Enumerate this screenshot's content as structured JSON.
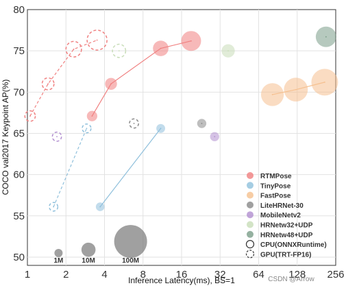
{
  "chart_data": {
    "type": "scatter",
    "xlabel": "Inference Latency(ms), BS=1",
    "ylabel": "COCO val2017 Keypoint AP(%)",
    "x_scale": "log2",
    "xlim": [
      1,
      256
    ],
    "ylim": [
      49,
      80
    ],
    "x_ticks": [
      1,
      2,
      4,
      8,
      16,
      32,
      64,
      128,
      256
    ],
    "x_tick_labels": [
      "1",
      "2",
      "4",
      "8",
      "16",
      "32",
      "64",
      "128",
      "256"
    ],
    "y_ticks": [
      50,
      55,
      60,
      65,
      70,
      75,
      80
    ],
    "y_tick_labels": [
      "50",
      "55",
      "60",
      "65",
      "70",
      "75",
      "80"
    ],
    "grid": true,
    "legend_position": "bottom-right",
    "legend": [
      {
        "label": "RTMPose",
        "marker": "dot",
        "color": "#f08080"
      },
      {
        "label": "TinyPose",
        "marker": "dot",
        "color": "#8fc0dc"
      },
      {
        "label": "FastPose",
        "marker": "dot",
        "color": "#f5c08f"
      },
      {
        "label": "LiteHRNet-30",
        "marker": "dot",
        "color": "#888888"
      },
      {
        "label": "MobileNetv2",
        "marker": "dot",
        "color": "#b28fd0"
      },
      {
        "label": "HRNetw32+UDP",
        "marker": "dot",
        "color": "#c8ddb8"
      },
      {
        "label": "HRNetw48+UDP",
        "marker": "dot",
        "color": "#7a9d88"
      },
      {
        "label": "CPU(ONNXRuntime)",
        "marker": "ring-solid",
        "color": "#333333"
      },
      {
        "label": "GPU(TRT-FP16)",
        "marker": "ring-dashed",
        "color": "#333333"
      }
    ],
    "series": [
      {
        "name": "RTMPose",
        "device": "CPU",
        "color": "#f08080",
        "connect": true,
        "points": [
          {
            "x": 3.2,
            "y": 67.1,
            "params_m": 3.3
          },
          {
            "x": 4.5,
            "y": 71.0,
            "params_m": 5.5
          },
          {
            "x": 11.0,
            "y": 75.3,
            "params_m": 13.5
          },
          {
            "x": 19.0,
            "y": 76.2,
            "params_m": 27.7
          }
        ]
      },
      {
        "name": "RTMPose",
        "device": "GPU",
        "color": "#f08080",
        "connect": true,
        "points": [
          {
            "x": 1.05,
            "y": 67.1,
            "params_m": 3.3
          },
          {
            "x": 1.45,
            "y": 71.0,
            "params_m": 5.5
          },
          {
            "x": 2.3,
            "y": 75.2,
            "params_m": 13.5
          },
          {
            "x": 3.5,
            "y": 76.3,
            "params_m": 27.7
          }
        ]
      },
      {
        "name": "TinyPose",
        "device": "CPU",
        "color": "#8fc0dc",
        "connect": true,
        "points": [
          {
            "x": 3.7,
            "y": 56.1,
            "params_m": 1.3
          },
          {
            "x": 11.0,
            "y": 65.6,
            "params_m": 1.5
          }
        ]
      },
      {
        "name": "TinyPose",
        "device": "GPU",
        "color": "#8fc0dc",
        "connect": true,
        "points": [
          {
            "x": 1.6,
            "y": 56.1,
            "params_m": 1.3
          },
          {
            "x": 2.9,
            "y": 65.6,
            "params_m": 1.5
          }
        ]
      },
      {
        "name": "FastPose",
        "device": "CPU",
        "color": "#f5c08f",
        "connect": true,
        "points": [
          {
            "x": 82.0,
            "y": 69.7,
            "params_m": 40
          },
          {
            "x": 125.0,
            "y": 70.3,
            "params_m": 45
          },
          {
            "x": 210.0,
            "y": 71.2,
            "params_m": 60
          }
        ]
      },
      {
        "name": "LiteHRNet-30",
        "device": "CPU",
        "color": "#888888",
        "connect": false,
        "points": [
          {
            "x": 23.0,
            "y": 66.2,
            "params_m": 1.8
          }
        ]
      },
      {
        "name": "LiteHRNet-30",
        "device": "GPU",
        "color": "#888888",
        "connect": false,
        "points": [
          {
            "x": 6.8,
            "y": 66.2,
            "params_m": 1.8
          }
        ]
      },
      {
        "name": "MobileNetv2",
        "device": "CPU",
        "color": "#b28fd0",
        "connect": false,
        "points": [
          {
            "x": 29.0,
            "y": 64.6,
            "params_m": 1.8
          }
        ]
      },
      {
        "name": "MobileNetv2",
        "device": "GPU",
        "color": "#b28fd0",
        "connect": false,
        "points": [
          {
            "x": 1.7,
            "y": 64.6,
            "params_m": 1.8
          }
        ]
      },
      {
        "name": "HRNetw32+UDP",
        "device": "CPU",
        "color": "#c8ddb8",
        "connect": false,
        "points": [
          {
            "x": 37.0,
            "y": 75.0,
            "params_m": 8
          }
        ]
      },
      {
        "name": "HRNetw32+UDP",
        "device": "GPU",
        "color": "#c8ddb8",
        "connect": false,
        "points": [
          {
            "x": 5.2,
            "y": 75.0,
            "params_m": 8
          }
        ]
      },
      {
        "name": "HRNetw48+UDP",
        "device": "CPU",
        "color": "#7a9d88",
        "connect": false,
        "points": [
          {
            "x": 215.0,
            "y": 76.7,
            "params_m": 30
          }
        ]
      }
    ],
    "size_reference": [
      {
        "label": "1M",
        "x": 1.75,
        "y": 50.5,
        "params_m": 1
      },
      {
        "label": "10M",
        "x": 3.0,
        "y": 50.9,
        "params_m": 10
      },
      {
        "label": "100M",
        "x": 6.4,
        "y": 51.9,
        "params_m": 100
      }
    ]
  },
  "watermark": "CSDN @Arrow"
}
